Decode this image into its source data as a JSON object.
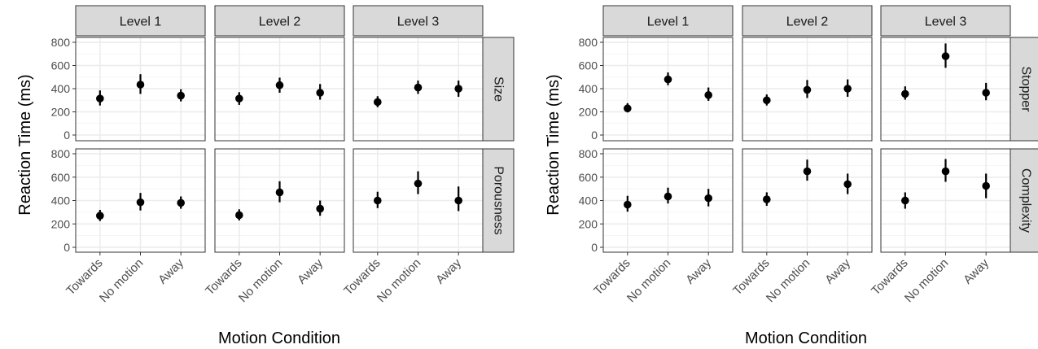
{
  "chart_data": [
    {
      "type": "scatter",
      "xlabel": "Motion Condition",
      "ylabel": "Reaction Time (ms)",
      "categories": [
        "Towards",
        "No motion",
        "Away"
      ],
      "ylim": [
        0,
        800
      ],
      "yticks": [
        0,
        200,
        400,
        600,
        800
      ],
      "columns": [
        "Level 1",
        "Level 2",
        "Level 3"
      ],
      "rows": [
        "Size",
        "Porousness"
      ],
      "panels": [
        {
          "row": "Size",
          "column": "Level 1",
          "mean": [
            315,
            435,
            340
          ],
          "lower": [
            255,
            355,
            290
          ],
          "upper": [
            385,
            525,
            395
          ]
        },
        {
          "row": "Size",
          "column": "Level 2",
          "mean": [
            315,
            430,
            365
          ],
          "lower": [
            260,
            365,
            305
          ],
          "upper": [
            370,
            495,
            440
          ]
        },
        {
          "row": "Size",
          "column": "Level 3",
          "mean": [
            285,
            410,
            400
          ],
          "lower": [
            240,
            355,
            330
          ],
          "upper": [
            335,
            470,
            470
          ]
        },
        {
          "row": "Porousness",
          "column": "Level 1",
          "mean": [
            270,
            385,
            380
          ],
          "lower": [
            225,
            315,
            330
          ],
          "upper": [
            320,
            465,
            435
          ]
        },
        {
          "row": "Porousness",
          "column": "Level 2",
          "mean": [
            275,
            470,
            330
          ],
          "lower": [
            230,
            385,
            270
          ],
          "upper": [
            325,
            565,
            400
          ]
        },
        {
          "row": "Porousness",
          "column": "Level 3",
          "mean": [
            400,
            545,
            400
          ],
          "lower": [
            335,
            455,
            310
          ],
          "upper": [
            475,
            650,
            520
          ]
        }
      ]
    },
    {
      "type": "scatter",
      "xlabel": "Motion Condition",
      "ylabel": "Reaction Time (ms)",
      "categories": [
        "Towards",
        "No motion",
        "Away"
      ],
      "ylim": [
        0,
        800
      ],
      "yticks": [
        0,
        200,
        400,
        600,
        800
      ],
      "columns": [
        "Level 1",
        "Level 2",
        "Level 3"
      ],
      "rows": [
        "Stopper",
        "Complexity"
      ],
      "panels": [
        {
          "row": "Stopper",
          "column": "Level 1",
          "mean": [
            230,
            480,
            345
          ],
          "lower": [
            195,
            430,
            295
          ],
          "upper": [
            275,
            540,
            410
          ]
        },
        {
          "row": "Stopper",
          "column": "Level 2",
          "mean": [
            300,
            390,
            400
          ],
          "lower": [
            255,
            320,
            330
          ],
          "upper": [
            350,
            475,
            480
          ]
        },
        {
          "row": "Stopper",
          "column": "Level 3",
          "mean": [
            355,
            680,
            365
          ],
          "lower": [
            305,
            580,
            300
          ],
          "upper": [
            420,
            790,
            450
          ]
        },
        {
          "row": "Complexity",
          "column": "Level 1",
          "mean": [
            365,
            435,
            420
          ],
          "lower": [
            305,
            375,
            350
          ],
          "upper": [
            440,
            510,
            500
          ]
        },
        {
          "row": "Complexity",
          "column": "Level 2",
          "mean": [
            410,
            650,
            540
          ],
          "lower": [
            355,
            570,
            455
          ],
          "upper": [
            470,
            750,
            630
          ]
        },
        {
          "row": "Complexity",
          "column": "Level 3",
          "mean": [
            400,
            650,
            525
          ],
          "lower": [
            330,
            560,
            420
          ],
          "upper": [
            470,
            755,
            630
          ]
        }
      ]
    }
  ]
}
